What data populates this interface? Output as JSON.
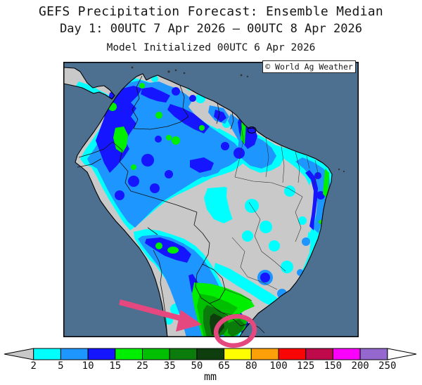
{
  "header": {
    "title": "GEFS Precipitation Forecast: Ensemble Median",
    "subtitle": "Day 1: 00UTC 7 Apr 2026 – 00UTC 8 Apr 2026",
    "init_line": "Model Initialized 00UTC 6 Apr 2026"
  },
  "map": {
    "credit": "© World Ag Weather",
    "region": "South America",
    "annotations": [
      "pink-arrow-pointing-to-southern-heavy-rain",
      "pink-ellipse-around-far-southern-brazil"
    ]
  },
  "palette": {
    "ocean": "#4D6F90",
    "land": "#C9C9C9",
    "annotation": "#E5487E"
  },
  "colorbar": {
    "unit": "mm",
    "tick_labels": [
      "2",
      "5",
      "10",
      "15",
      "25",
      "35",
      "50",
      "65",
      "80",
      "100",
      "125",
      "150",
      "200",
      "250"
    ],
    "colors": [
      "#00FFFF",
      "#1E96FF",
      "#1515FF",
      "#00EE00",
      "#00BE00",
      "#0B7C0B",
      "#0E3E0E",
      "#FFFF00",
      "#FFA008",
      "#FA0505",
      "#BE0A4A",
      "#FB00FB",
      "#9468CE"
    ],
    "underflow_color": "#C8C8C8",
    "overflow_color": "#FFFFFF"
  }
}
